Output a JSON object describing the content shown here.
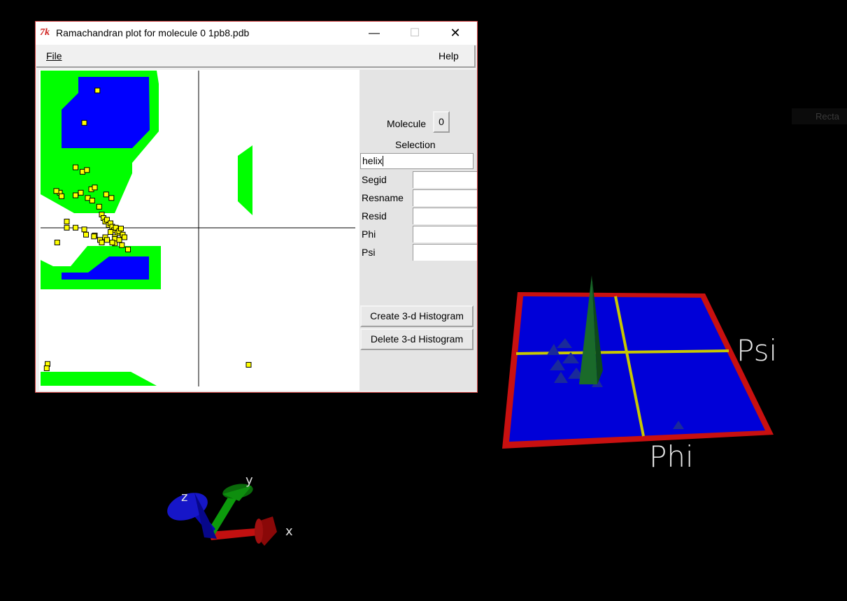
{
  "window": {
    "title": "Ramachandran plot for molecule 0 1pb8.pdb",
    "icon_glyph": "7k",
    "minimize_glyph": "—",
    "maximize_glyph": "☐",
    "close_glyph": "✕"
  },
  "menubar": {
    "file": "File",
    "help": "Help"
  },
  "side_panel": {
    "molecule_label": "Molecule",
    "molecule_value": "0",
    "selection_label": "Selection",
    "selection_value": "helix",
    "fields": [
      {
        "label": "Segid",
        "value": ""
      },
      {
        "label": "Resname",
        "value": ""
      },
      {
        "label": "Resid",
        "value": ""
      },
      {
        "label": "Phi",
        "value": ""
      },
      {
        "label": "Psi",
        "value": ""
      }
    ],
    "create_histogram": "Create 3-d Histogram",
    "delete_histogram": "Delete 3-d Histogram"
  },
  "axes_widget": {
    "x": "x",
    "y": "y",
    "z": "z"
  },
  "histogram_3d": {
    "phi_label": "Phi",
    "psi_label": "Psi"
  },
  "ghost_label": "Recta",
  "colors": {
    "allowed_region": "#00ff00",
    "core_region": "#0000ff",
    "point_fill": "#ffff00",
    "histogram_floor": "#0000d8",
    "histogram_frame": "#d01010"
  },
  "chart_data": {
    "type": "scatter",
    "xlim": [
      -180,
      180
    ],
    "ylim": [
      -180,
      180
    ],
    "xlabel": "",
    "ylabel": "",
    "grid": false,
    "points": [
      [
        -172,
        -155
      ],
      [
        -115,
        158
      ],
      [
        -130,
        121
      ],
      [
        -150,
        8
      ],
      [
        -173,
        -160
      ],
      [
        -140,
        70
      ],
      [
        -132,
        65
      ],
      [
        -127,
        67
      ],
      [
        -158,
        41
      ],
      [
        -156,
        37
      ],
      [
        -162,
        43
      ],
      [
        -140,
        38
      ],
      [
        -134,
        41
      ],
      [
        -122,
        45
      ],
      [
        -118,
        47
      ],
      [
        -126,
        35
      ],
      [
        -121,
        32
      ],
      [
        -105,
        39
      ],
      [
        -99,
        35
      ],
      [
        -113,
        25
      ],
      [
        -110,
        16
      ],
      [
        -108,
        12
      ],
      [
        -106,
        8
      ],
      [
        -104,
        10
      ],
      [
        -102,
        4
      ],
      [
        -100,
        6
      ],
      [
        -98,
        2
      ],
      [
        -96,
        -2
      ],
      [
        -94,
        1
      ],
      [
        -92,
        -5
      ],
      [
        -90,
        -3
      ],
      [
        -88,
        0
      ],
      [
        -86,
        -7
      ],
      [
        -100,
        -4
      ],
      [
        -106,
        -10
      ],
      [
        -112,
        -13
      ],
      [
        -95,
        -10
      ],
      [
        -84,
        -10
      ],
      [
        -118,
        -8
      ],
      [
        -130,
        -1
      ],
      [
        -140,
        1
      ],
      [
        -150,
        1
      ],
      [
        -95,
        -12
      ],
      [
        -128,
        -7
      ],
      [
        -95,
        -17
      ],
      [
        -90,
        -13
      ],
      [
        -87,
        -19
      ],
      [
        -110,
        -16
      ],
      [
        -104,
        -13
      ],
      [
        -80,
        -24
      ],
      [
        -161,
        -16
      ],
      [
        -119,
        -9
      ],
      [
        -98,
        -16
      ],
      [
        58,
        -156
      ]
    ]
  }
}
